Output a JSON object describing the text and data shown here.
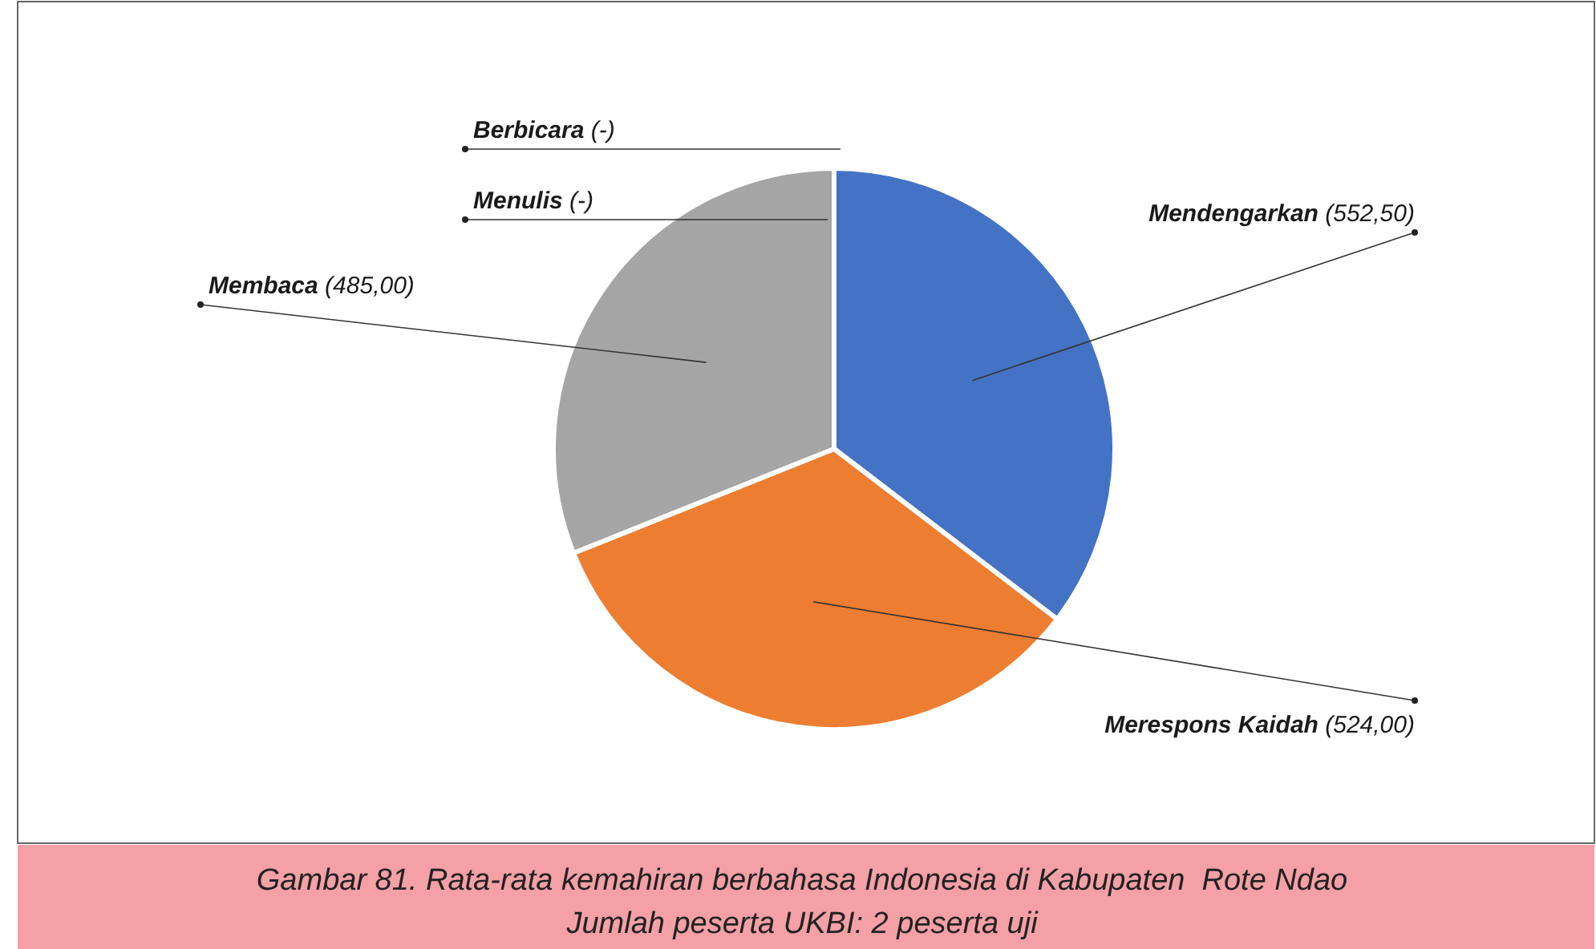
{
  "chart_data": {
    "type": "pie",
    "title": "Gambar 81. Rata-rata kemahiran berbahasa Indonesia di Kabupaten  Rote Ndao",
    "subtitle": "Jumlah peserta UKBI: 2 peserta uji",
    "categories": [
      "Mendengarkan",
      "Merespons Kaidah",
      "Membaca",
      "Menulis",
      "Berbicara"
    ],
    "values": [
      552.5,
      524,
      485,
      null,
      null
    ],
    "value_labels": [
      "(552,50)",
      "(524,00)",
      "(485,00)",
      "(-)",
      "(-)"
    ],
    "colors": [
      "#4472c4",
      "#ed7d31",
      "#a5a5a5",
      null,
      null
    ]
  }
}
